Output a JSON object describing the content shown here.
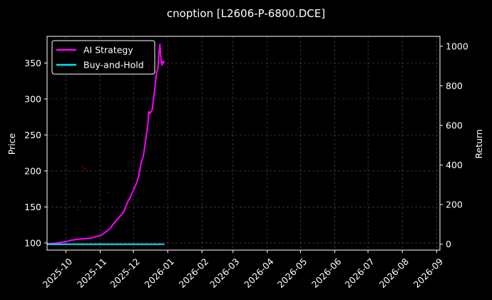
{
  "chart_data": {
    "type": "line",
    "title": "cnoption [L2606-P-6800.DCE]",
    "xlabel": "",
    "ylabel": "Price",
    "ylabel_right": "Return",
    "x_ticks": [
      "2025-10",
      "2025-11",
      "2025-12",
      "2026-01",
      "2026-02",
      "2026-03",
      "2026-04",
      "2026-05",
      "2026-06",
      "2026-07",
      "2026-08",
      "2026-09"
    ],
    "y_ticks_left": [
      100,
      150,
      200,
      250,
      300,
      350
    ],
    "y_ticks_right": [
      0,
      200,
      400,
      600,
      800,
      1000
    ],
    "xlim": [
      "2025-09-14",
      "2026-09-04"
    ],
    "ylim_left": [
      90,
      387
    ],
    "ylim_right": [
      -30,
      1050
    ],
    "grid": true,
    "legend_position": "top-left",
    "colors": {
      "background": "#000000",
      "axes": "#ffffff",
      "grid": "#555555",
      "ai_strategy": "#ff00ff",
      "buy_and_hold": "#00e5ee",
      "trade_marks": "#8b0000"
    },
    "series": [
      {
        "name": "AI Strategy",
        "axis": "right",
        "points": [
          [
            "2025-09-14",
            2
          ],
          [
            "2025-09-20",
            4
          ],
          [
            "2025-09-26",
            8
          ],
          [
            "2025-10-02",
            14
          ],
          [
            "2025-10-06",
            20
          ],
          [
            "2025-10-12",
            25
          ],
          [
            "2025-10-18",
            28
          ],
          [
            "2025-10-24",
            31
          ],
          [
            "2025-10-28",
            38
          ],
          [
            "2025-11-02",
            45
          ],
          [
            "2025-11-06",
            62
          ],
          [
            "2025-11-10",
            80
          ],
          [
            "2025-11-14",
            110
          ],
          [
            "2025-11-18",
            135
          ],
          [
            "2025-11-22",
            160
          ],
          [
            "2025-11-26",
            215
          ],
          [
            "2025-11-28",
            235
          ],
          [
            "2025-12-02",
            285
          ],
          [
            "2025-12-04",
            310
          ],
          [
            "2025-12-06",
            350
          ],
          [
            "2025-12-08",
            410
          ],
          [
            "2025-12-10",
            445
          ],
          [
            "2025-12-12",
            520
          ],
          [
            "2025-12-14",
            600
          ],
          [
            "2025-12-15",
            670
          ],
          [
            "2025-12-16",
            660
          ],
          [
            "2025-12-18",
            680
          ],
          [
            "2025-12-20",
            770
          ],
          [
            "2025-12-22",
            870
          ],
          [
            "2025-12-23",
            880
          ],
          [
            "2025-12-24",
            960
          ],
          [
            "2025-12-25",
            1010
          ],
          [
            "2025-12-26",
            930
          ],
          [
            "2025-12-27",
            905
          ],
          [
            "2025-12-28",
            925
          ],
          [
            "2025-12-29",
            915
          ]
        ]
      },
      {
        "name": "Buy-and-Hold",
        "axis": "right",
        "points": [
          [
            "2025-09-14",
            0
          ],
          [
            "2025-12-29",
            0
          ]
        ]
      }
    ],
    "trade_markers": [
      [
        "2025-10-12",
        146
      ],
      [
        "2025-10-14",
        158
      ],
      [
        "2025-10-16",
        206
      ],
      [
        "2025-10-18",
        203
      ],
      [
        "2025-10-20",
        200
      ],
      [
        "2025-11-08",
        170
      ]
    ]
  }
}
